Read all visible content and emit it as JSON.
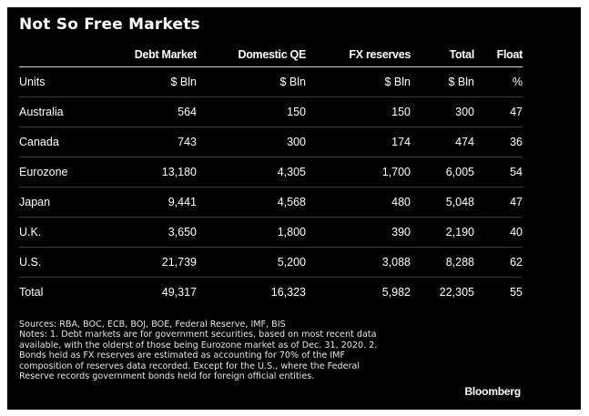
{
  "title": "Not So Free Markets",
  "chart_data": {
    "type": "table",
    "title": "Not So Free Markets",
    "columns": [
      "",
      "Debt Market",
      "Domestic QE",
      "FX reserves",
      "Total",
      "Float"
    ],
    "units": [
      "Units",
      "$ Bln",
      "$ Bln",
      "$ Bln",
      "$ Bln",
      "%"
    ],
    "rows": [
      [
        "Australia",
        "564",
        "150",
        "150",
        "300",
        "47"
      ],
      [
        "Canada",
        "743",
        "300",
        "174",
        "474",
        "36"
      ],
      [
        "Eurozone",
        "13,180",
        "4,305",
        "1,700",
        "6,005",
        "54"
      ],
      [
        "Japan",
        "9,441",
        "4,568",
        "480",
        "5,048",
        "47"
      ],
      [
        "U.K.",
        "3,650",
        "1,800",
        "390",
        "2,190",
        "40"
      ],
      [
        "U.S.",
        "21,739",
        "5,200",
        "3,088",
        "8,288",
        "62"
      ],
      [
        "Total",
        "49,317",
        "16,323",
        "5,982",
        "22,305",
        "55"
      ]
    ]
  },
  "notes": [
    "Sources: RBA, BOC, ECB, BOJ, BOE, Federal Reserve, IMF, BIS",
    "Notes: 1. Debt markets are for government securities, based on most recent data",
    "available, with the olderst of those being Eurozone market as of Dec. 31, 2020. 2.",
    "Bonds held as FX reserves are estimated as accounting for 70% of the IMF",
    "composition of reserves data recorded. Except for the U.S., where the Federal",
    "Reserve records government bonds held for foreign official entities."
  ],
  "brand": "Bloomberg"
}
